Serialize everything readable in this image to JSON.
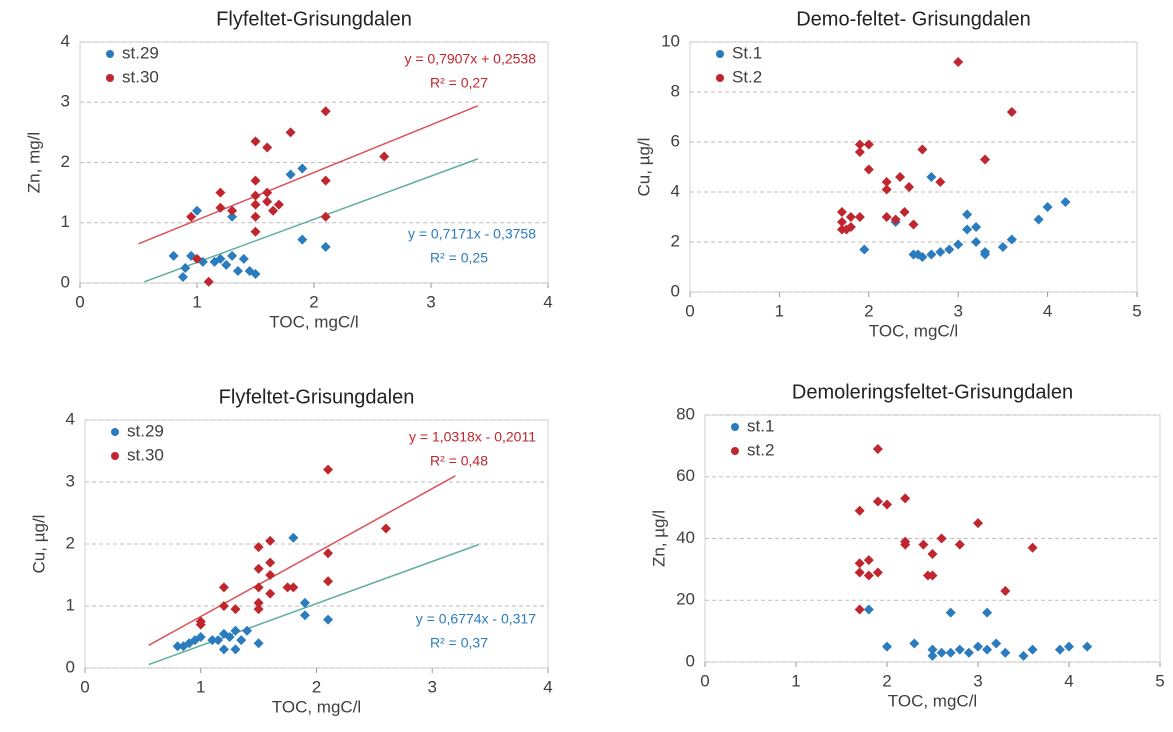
{
  "chart_data": [
    {
      "type": "scatter",
      "title": "Flyfeltet-Grisungdalen",
      "x_label": "TOC, mgC/l",
      "y_label": "Zn, mg/l",
      "xlim": [
        0,
        4
      ],
      "ylim": [
        0,
        4
      ],
      "xticks": [
        0,
        1,
        2,
        3,
        4
      ],
      "yticks": [
        0,
        1,
        2,
        3,
        4
      ],
      "grid": true,
      "series": [
        {
          "name": "st.29",
          "color": "#2b7bbf",
          "equation": "y = 0,7171x - 0,3758",
          "r2": "R² = 0,25",
          "x": [
            0.8,
            0.88,
            0.9,
            0.95,
            1.0,
            1.05,
            1.15,
            1.2,
            1.25,
            1.3,
            1.35,
            1.4,
            1.45,
            1.5,
            1.3,
            1.8,
            1.9,
            1.9,
            2.1
          ],
          "values": [
            0.45,
            0.1,
            0.25,
            0.45,
            1.2,
            0.35,
            0.35,
            0.4,
            0.3,
            0.45,
            0.2,
            0.4,
            0.2,
            0.15,
            1.1,
            1.8,
            1.9,
            0.72,
            0.6
          ],
          "trendline": {
            "color": "#5fae9f",
            "x": [
              0.55,
              3.4
            ],
            "values": [
              0.02,
              2.06
            ]
          }
        },
        {
          "name": "st.30",
          "color": "#c0262d",
          "equation": "y = 0,7907x + 0,2538",
          "r2": "R² = 0,27",
          "x": [
            0.95,
            1.0,
            1.1,
            1.2,
            1.2,
            1.3,
            1.5,
            1.5,
            1.5,
            1.5,
            1.5,
            1.5,
            1.6,
            1.6,
            1.6,
            1.65,
            1.7,
            1.8,
            2.1,
            2.1,
            2.1,
            2.6
          ],
          "values": [
            1.1,
            0.4,
            0.02,
            1.5,
            1.25,
            1.2,
            2.35,
            1.7,
            1.45,
            1.3,
            1.1,
            0.85,
            2.25,
            1.5,
            1.35,
            1.2,
            1.3,
            2.5,
            2.85,
            1.7,
            1.1,
            2.1
          ],
          "trendline": {
            "color": "#d9545b",
            "x": [
              0.5,
              3.4
            ],
            "values": [
              0.65,
              2.94
            ]
          }
        }
      ]
    },
    {
      "type": "scatter",
      "title": "Demo-feltet- Grisungdalen",
      "x_label": "TOC, mgC/l",
      "y_label": "Cu, µg/l",
      "xlim": [
        0,
        5
      ],
      "ylim": [
        0,
        10
      ],
      "xticks": [
        0,
        1,
        2,
        3,
        4,
        5
      ],
      "yticks": [
        0,
        2,
        4,
        6,
        8,
        10
      ],
      "grid": true,
      "series": [
        {
          "name": "St.1",
          "color": "#2b7bbf",
          "x": [
            1.95,
            2.3,
            2.5,
            2.55,
            2.6,
            2.7,
            2.8,
            2.9,
            3.0,
            3.1,
            3.1,
            3.2,
            3.2,
            3.3,
            3.3,
            3.5,
            3.6,
            3.9,
            4.0,
            4.2,
            2.7
          ],
          "values": [
            1.7,
            2.8,
            1.5,
            1.5,
            1.4,
            1.5,
            1.6,
            1.7,
            1.9,
            3.1,
            2.5,
            2.6,
            2.0,
            1.5,
            1.6,
            1.8,
            2.1,
            2.9,
            3.4,
            3.6,
            4.6
          ]
        },
        {
          "name": "St.2",
          "color": "#c0262d",
          "x": [
            1.7,
            1.7,
            1.7,
            1.75,
            1.8,
            1.8,
            1.9,
            1.9,
            1.9,
            2.0,
            2.0,
            2.2,
            2.2,
            2.2,
            2.3,
            2.35,
            2.4,
            2.45,
            2.5,
            2.6,
            2.8,
            3.0,
            3.3,
            3.6
          ],
          "values": [
            3.2,
            2.8,
            2.5,
            2.5,
            2.6,
            3.0,
            3.0,
            5.6,
            5.9,
            5.9,
            4.9,
            4.4,
            4.1,
            3.0,
            2.9,
            4.6,
            3.2,
            4.2,
            2.7,
            5.7,
            4.4,
            9.2,
            5.3,
            7.2
          ]
        }
      ]
    },
    {
      "type": "scatter",
      "title": "Flyfeltet-Grisungdalen",
      "x_label": "TOC, mgC/l",
      "y_label": "Cu, µg/l",
      "xlim": [
        0,
        4
      ],
      "ylim": [
        0,
        4
      ],
      "xticks": [
        0,
        1,
        2,
        3,
        4
      ],
      "yticks": [
        0,
        1,
        2,
        3,
        4
      ],
      "grid": true,
      "series": [
        {
          "name": "st.29",
          "color": "#2b7bbf",
          "equation": "y = 0,6774x - 0,317",
          "r2": "R² = 0,37",
          "x": [
            0.8,
            0.85,
            0.9,
            0.95,
            1.0,
            1.1,
            1.15,
            1.2,
            1.2,
            1.25,
            1.3,
            1.3,
            1.35,
            1.4,
            1.5,
            1.8,
            1.9,
            1.9,
            2.1
          ],
          "values": [
            0.35,
            0.35,
            0.4,
            0.45,
            0.5,
            0.45,
            0.45,
            0.3,
            0.55,
            0.5,
            0.3,
            0.6,
            0.45,
            0.6,
            0.4,
            2.1,
            1.05,
            0.85,
            0.78
          ],
          "trendline": {
            "color": "#5fae9f",
            "x": [
              0.55,
              3.4
            ],
            "values": [
              0.055,
              1.99
            ]
          }
        },
        {
          "name": "st.30",
          "color": "#c0262d",
          "equation": "y = 1,0318x - 0,2011",
          "r2": "R² = 0,48",
          "x": [
            1.0,
            1.0,
            1.2,
            1.2,
            1.3,
            1.5,
            1.5,
            1.5,
            1.5,
            1.5,
            1.6,
            1.6,
            1.6,
            1.6,
            1.75,
            1.8,
            2.1,
            2.1,
            2.1,
            2.6
          ],
          "values": [
            0.75,
            0.7,
            1.3,
            1.0,
            0.95,
            1.95,
            1.6,
            1.3,
            1.05,
            0.95,
            2.05,
            1.7,
            1.5,
            1.2,
            1.3,
            1.3,
            3.2,
            1.85,
            1.4,
            2.25
          ],
          "trendline": {
            "color": "#d9545b",
            "x": [
              0.55,
              3.2
            ],
            "values": [
              0.366,
              3.1
            ]
          }
        }
      ]
    },
    {
      "type": "scatter",
      "title": "Demoleringsfeltet-Grisungdalen",
      "x_label": "TOC, mgC/l",
      "y_label": "Zn, µg/l",
      "xlim": [
        0,
        5
      ],
      "ylim": [
        0,
        80
      ],
      "xticks": [
        0,
        1,
        2,
        3,
        4,
        5
      ],
      "yticks": [
        0,
        20,
        40,
        60,
        80
      ],
      "grid": true,
      "series": [
        {
          "name": "st.1",
          "color": "#2b7bbf",
          "x": [
            1.8,
            2.0,
            2.3,
            2.5,
            2.5,
            2.6,
            2.7,
            2.7,
            2.8,
            2.9,
            3.0,
            3.1,
            3.1,
            3.2,
            3.3,
            3.5,
            3.6,
            3.9,
            4.0,
            4.2
          ],
          "values": [
            17,
            5,
            6,
            4,
            2,
            3,
            3,
            16,
            4,
            3,
            5,
            16,
            4,
            6,
            3,
            2,
            4,
            4,
            5,
            5
          ]
        },
        {
          "name": "st.2",
          "color": "#c0262d",
          "x": [
            1.7,
            1.7,
            1.7,
            1.7,
            1.8,
            1.8,
            1.9,
            1.9,
            1.9,
            2.0,
            2.2,
            2.2,
            2.2,
            2.4,
            2.45,
            2.5,
            2.5,
            2.6,
            2.8,
            3.0,
            3.3,
            3.6
          ],
          "values": [
            49,
            32,
            29,
            17,
            33,
            28,
            69,
            52,
            29,
            51,
            53,
            39,
            38,
            38,
            28,
            35,
            28,
            40,
            38,
            45,
            23,
            37
          ]
        }
      ]
    }
  ]
}
